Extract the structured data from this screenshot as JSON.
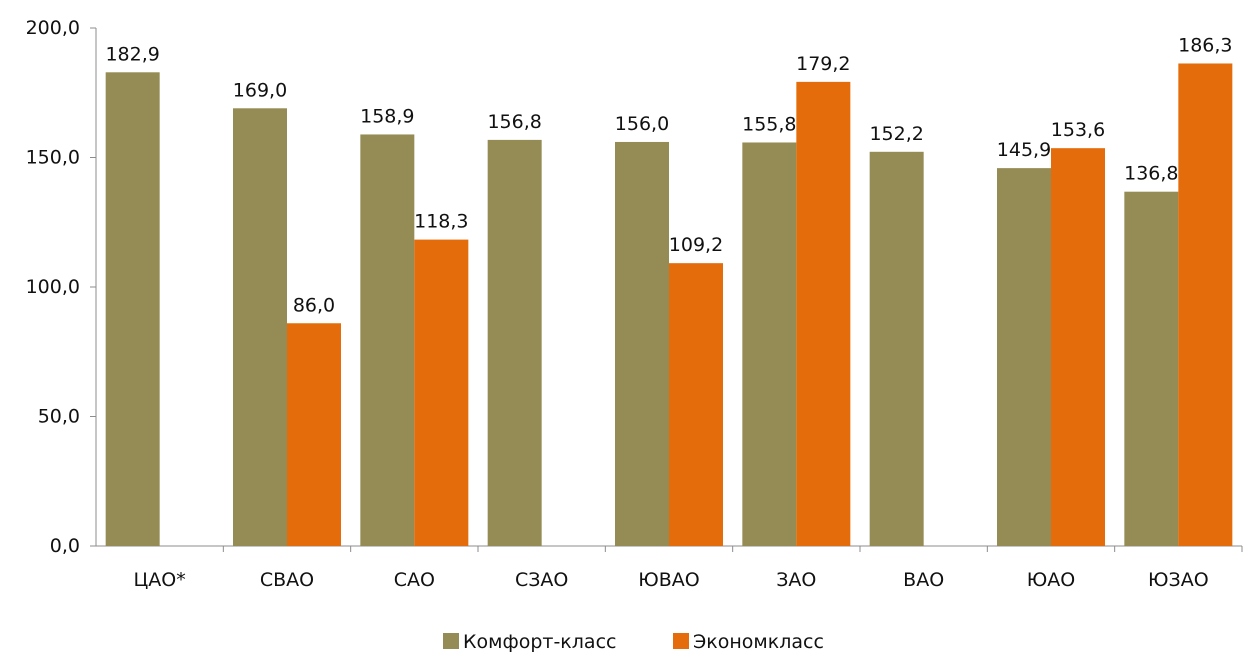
{
  "chart_data": {
    "type": "bar",
    "title": "",
    "xlabel": "",
    "ylabel": "",
    "ylim": [
      0,
      200
    ],
    "yticks": [
      "0,0",
      "50,0",
      "100,0",
      "150,0",
      "200,0"
    ],
    "grid": false,
    "legend_position": "bottom",
    "categories": [
      "ЦАО*",
      "СВАО",
      "САО",
      "СЗАО",
      "ЮВАО",
      "ЗАО",
      "ВАО",
      "ЮАО",
      "ЮЗАО"
    ],
    "series": [
      {
        "name": "Комфорт-класс",
        "color": "#958c55",
        "values": [
          182.9,
          169.0,
          158.9,
          156.8,
          156.0,
          155.8,
          152.2,
          145.9,
          136.8
        ],
        "labels": [
          "182,9",
          "169,0",
          "158,9",
          "156,8",
          "156,0",
          "155,8",
          "152,2",
          "145,9",
          "136,8"
        ]
      },
      {
        "name": "Экономкласс",
        "color": "#e46c0a",
        "values": [
          null,
          86.0,
          118.3,
          null,
          109.2,
          179.2,
          null,
          153.6,
          186.3
        ],
        "labels": [
          null,
          "86,0",
          "118,3",
          null,
          "109,2",
          "179,2",
          null,
          "153,6",
          "186,3"
        ]
      }
    ]
  }
}
